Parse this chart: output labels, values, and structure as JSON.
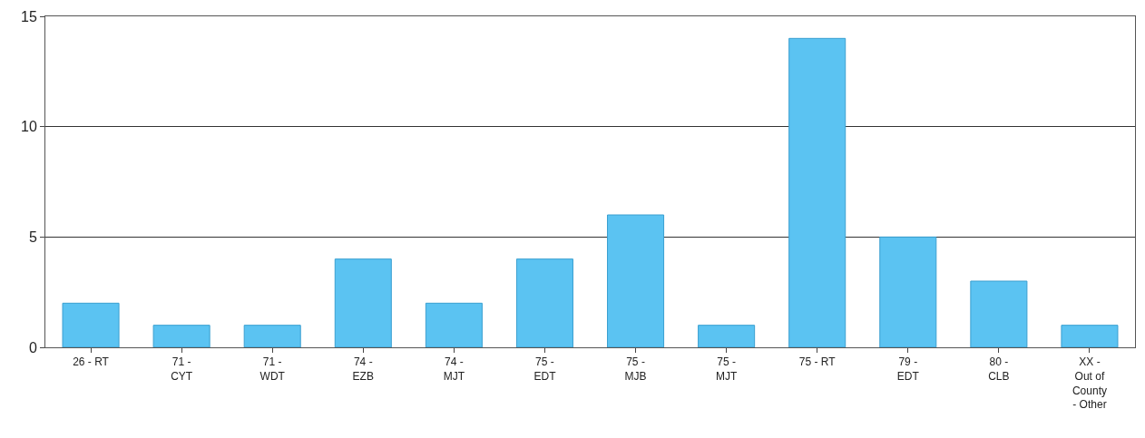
{
  "chart_data": {
    "type": "bar",
    "categories": [
      "26 - RT",
      "71 -\nCYT",
      "71 -\nWDT",
      "74 -\nEZB",
      "74 -\nMJT",
      "75 -\nEDT",
      "75 -\nMJB",
      "75 -\nMJT",
      "75 - RT",
      "79 -\nEDT",
      "80 -\nCLB",
      "XX -\nOut of\nCounty\n- Other"
    ],
    "values": [
      2,
      1,
      1,
      4,
      2,
      4,
      6,
      1,
      14,
      5,
      3,
      1
    ],
    "color": "#5bc3f2",
    "ylim": [
      0,
      15
    ],
    "yticks": [
      0,
      5,
      10,
      15
    ],
    "grid": "y"
  }
}
